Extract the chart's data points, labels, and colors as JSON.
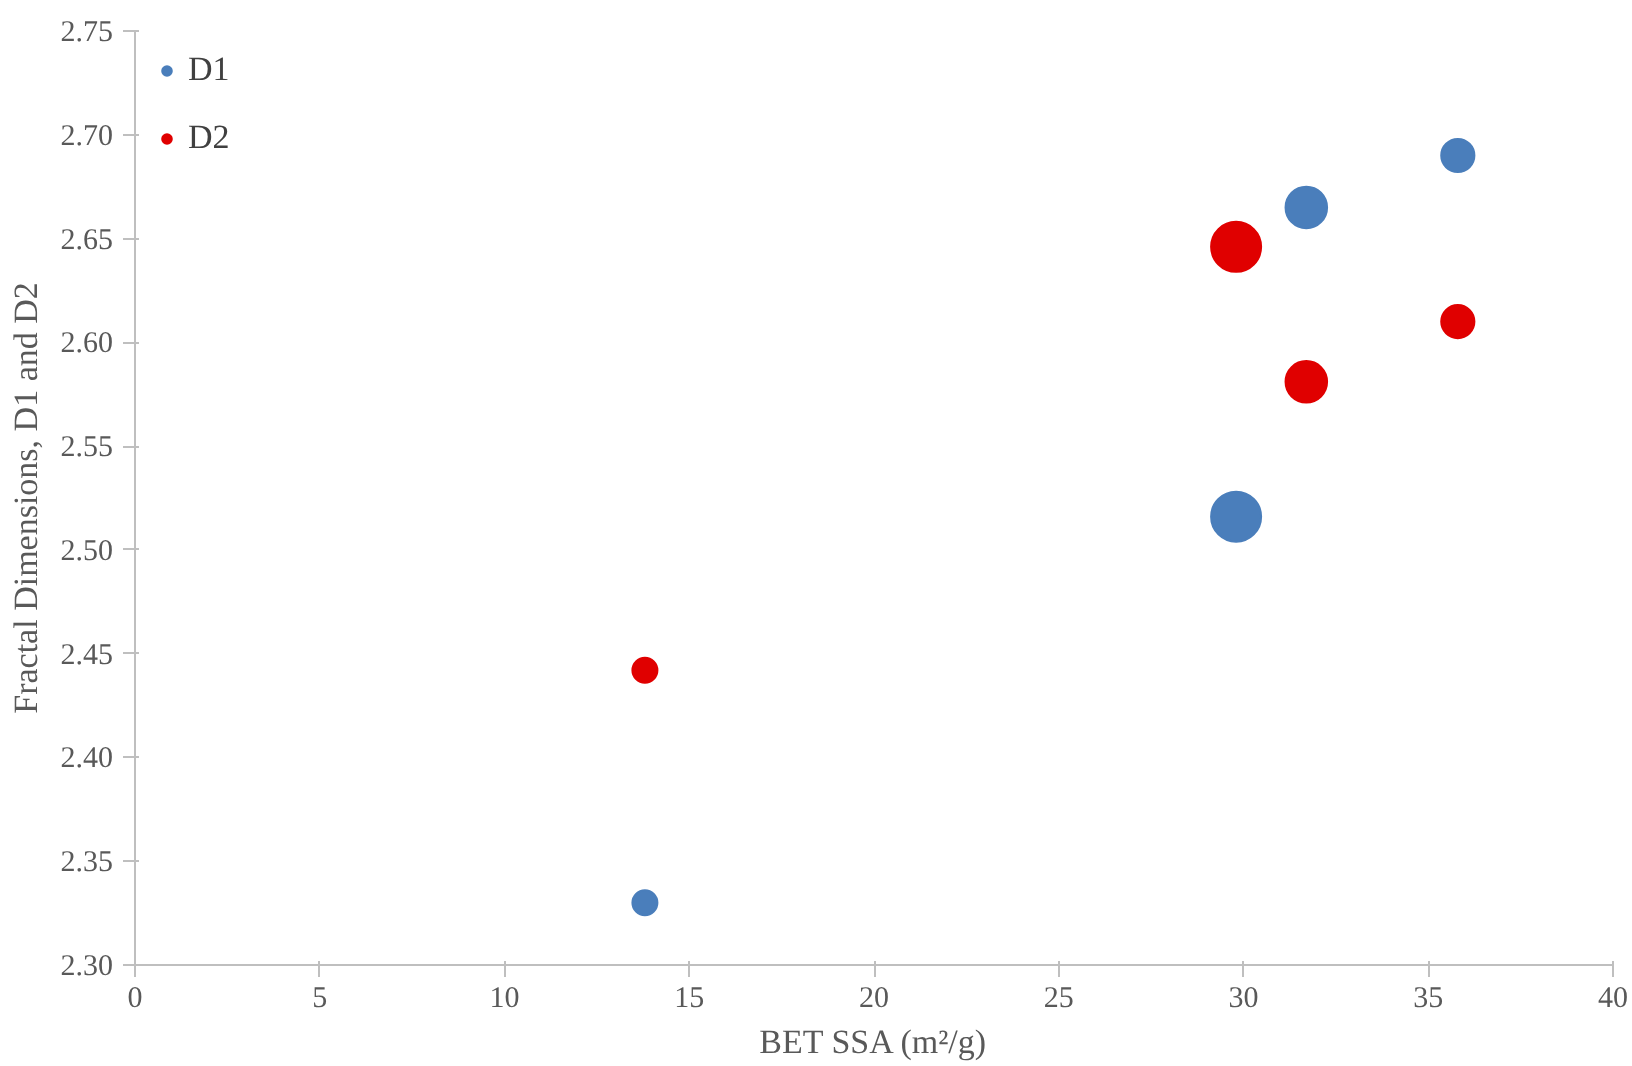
{
  "chart_data": {
    "type": "bubble",
    "xlabel": "BET SSA (m²/g)",
    "ylabel": "Fractal Dimensions, D1 and D2",
    "x": [
      13.8,
      29.8,
      31.7,
      35.8
    ],
    "series": [
      {
        "name": "D1",
        "color": "#4a7ebb",
        "values": [
          2.33,
          2.516,
          2.665,
          2.69
        ],
        "sizes": [
          0.25,
          1,
          0.69,
          0.44
        ]
      },
      {
        "name": "D2",
        "color": "#e00000",
        "values": [
          2.442,
          2.646,
          2.581,
          2.61
        ],
        "sizes": [
          0.25,
          1,
          0.69,
          0.44
        ]
      }
    ],
    "xlim": [
      0,
      40
    ],
    "xticks": [
      0,
      5,
      10,
      15,
      20,
      25,
      30,
      35,
      40
    ],
    "ylim": [
      2.3,
      2.75
    ],
    "yticks": [
      {
        "value": 2.3,
        "label": "2.30"
      },
      {
        "value": 2.35,
        "label": "2.35"
      },
      {
        "value": 2.4,
        "label": "2.40"
      },
      {
        "value": 2.45,
        "label": "2.45"
      },
      {
        "value": 2.5,
        "label": "2.50"
      },
      {
        "value": 2.55,
        "label": "2.55"
      },
      {
        "value": 2.6,
        "label": "2.60"
      },
      {
        "value": 2.65,
        "label": "2.65"
      },
      {
        "value": 2.7,
        "label": "2.70"
      },
      {
        "value": 2.75,
        "label": "2.75"
      }
    ],
    "legend": "top left",
    "grid": false
  }
}
